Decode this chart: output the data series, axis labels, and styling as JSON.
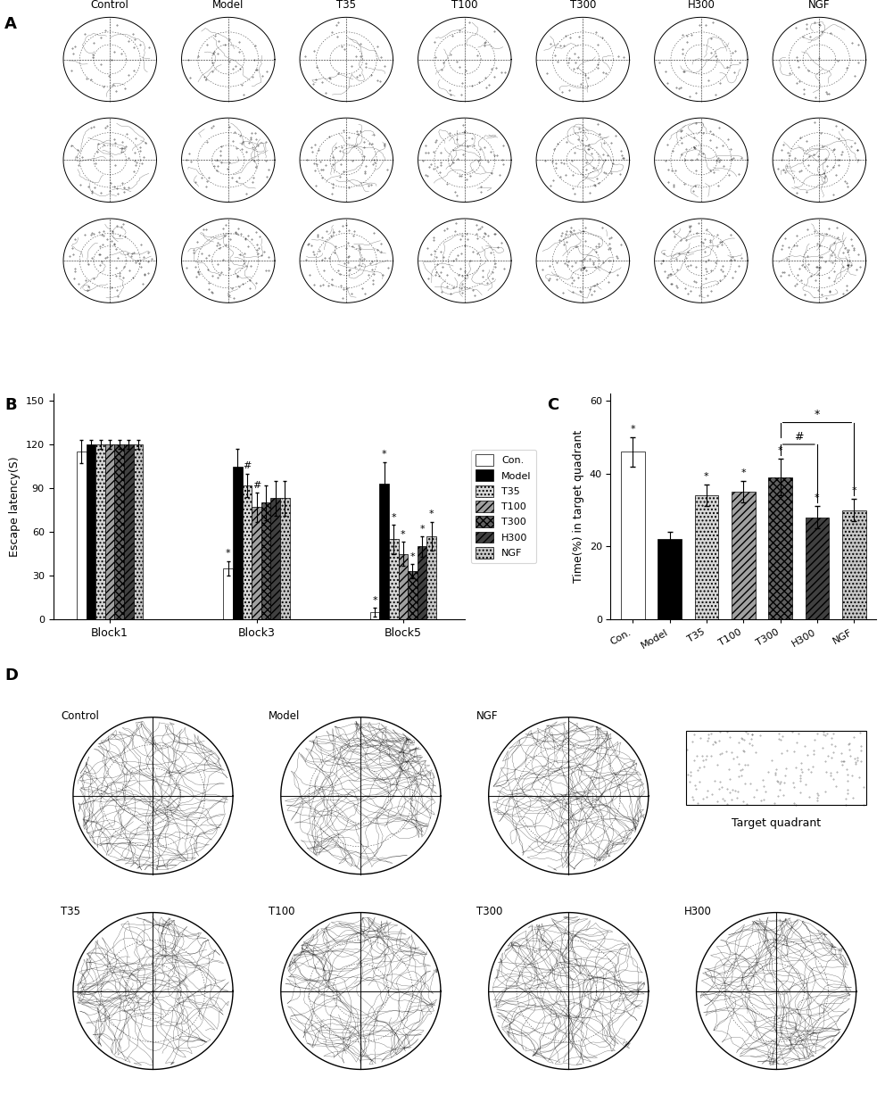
{
  "panel_A_labels": [
    "Control",
    "Model",
    "T35",
    "T100",
    "T300",
    "H300",
    "NGF"
  ],
  "panel_B_groups": [
    "Block1",
    "Block3",
    "Block5"
  ],
  "panel_B_values": [
    [
      115,
      120,
      120,
      120,
      120,
      120,
      120
    ],
    [
      35,
      105,
      92,
      77,
      80,
      83,
      83
    ],
    [
      5,
      93,
      55,
      45,
      33,
      50,
      57
    ]
  ],
  "panel_B_errors": [
    [
      8,
      3,
      3,
      3,
      3,
      3,
      3
    ],
    [
      5,
      12,
      8,
      10,
      12,
      12,
      12
    ],
    [
      3,
      15,
      10,
      8,
      5,
      7,
      10
    ]
  ],
  "panel_C_values": [
    46,
    22,
    34,
    35,
    39,
    28,
    30
  ],
  "panel_C_errors": [
    4,
    2,
    3,
    3,
    5,
    3,
    3
  ],
  "panel_C_categories": [
    "Con.",
    "Model",
    "T35",
    "T100",
    "T300",
    "H300",
    "NGF"
  ],
  "legend_labels": [
    "Con.",
    "Model",
    "T35",
    "T100",
    "T300",
    "H300",
    "NGF"
  ],
  "panel_D_top": [
    "Control",
    "Model",
    "NGF"
  ],
  "panel_D_bot": [
    "T35",
    "T100",
    "T300",
    "H300"
  ]
}
